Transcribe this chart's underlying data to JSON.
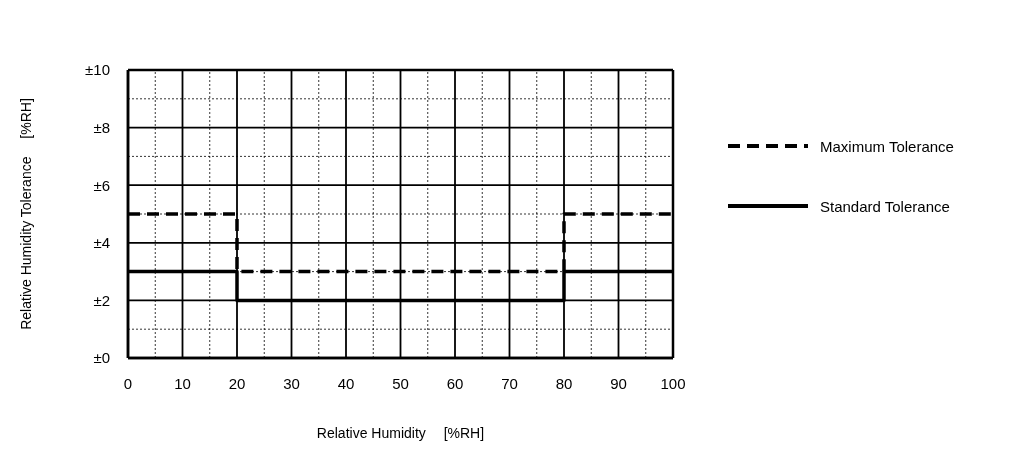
{
  "chart_data": {
    "type": "step",
    "xlabel": "Relative Humidity　 [%RH]",
    "ylabel": "Relative Humidity Tolerance　 [%RH]",
    "xlim": [
      0,
      100
    ],
    "xticks": [
      0,
      {
        "value": 5,
        "label": null
      },
      10,
      {
        "value": 15,
        "label": null
      },
      20,
      {
        "value": 25,
        "label": null
      },
      30,
      {
        "value": 35,
        "label": null
      },
      40,
      {
        "value": 45,
        "label": null
      },
      50,
      {
        "value": 55,
        "label": null
      },
      60,
      {
        "value": 65,
        "label": null
      },
      70,
      {
        "value": 75,
        "label": null
      },
      80,
      {
        "value": 85,
        "label": null
      },
      90,
      {
        "value": 95,
        "label": null
      },
      100
    ],
    "ylim": [
      0,
      10
    ],
    "yticks": [
      {
        "value": 0,
        "label": "±0"
      },
      {
        "value": 1,
        "label": null
      },
      {
        "value": 2,
        "label": "±2"
      },
      {
        "value": 3,
        "label": null
      },
      {
        "value": 4,
        "label": "±4"
      },
      {
        "value": 5,
        "label": null
      },
      {
        "value": 6,
        "label": "±6"
      },
      {
        "value": 7,
        "label": null
      },
      {
        "value": 8,
        "label": "±8"
      },
      {
        "value": 9,
        "label": null
      },
      {
        "value": 10,
        "label": "±10"
      }
    ],
    "grid": true,
    "legend": "right",
    "marker": "none",
    "series": [
      {
        "name": "Maximum Tolerance",
        "color": "#000000",
        "line_style": "dashed",
        "x": [
          0,
          20,
          80,
          100
        ],
        "values": [
          5,
          3,
          5,
          5
        ]
      },
      {
        "name": "Standard Tolerance",
        "color": "#000000",
        "line_style": "solid",
        "x": [
          0,
          20,
          80,
          100
        ],
        "values": [
          3,
          2,
          3,
          3
        ]
      }
    ]
  }
}
